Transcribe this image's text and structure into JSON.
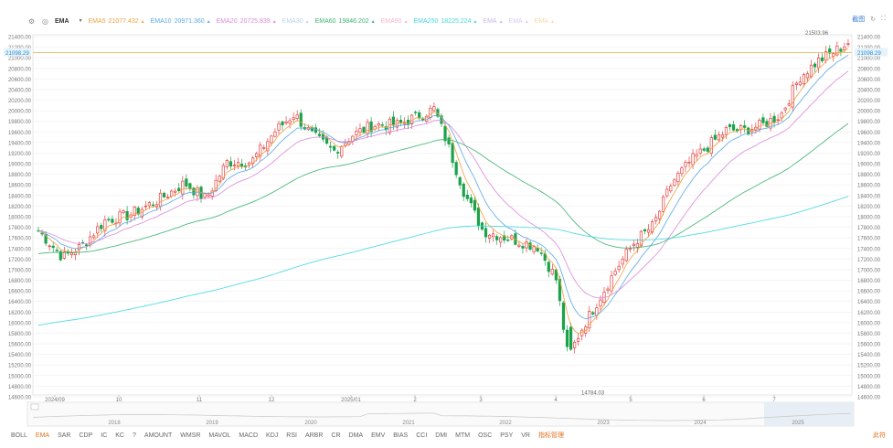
{
  "toolbar": {
    "indicator": "EMA",
    "items": [
      {
        "label": "EMA5",
        "value": "21077.432",
        "color": "#f0a040"
      },
      {
        "label": "EMA10",
        "value": "20971.360",
        "color": "#5aa9e6"
      },
      {
        "label": "EMA20",
        "value": "20725.839",
        "color": "#d98ad9"
      },
      {
        "label": "EMA30",
        "value": "",
        "color": "#b8d4f0"
      },
      {
        "label": "EMA60",
        "value": "19846.202",
        "color": "#3cb371"
      },
      {
        "label": "EMA90",
        "value": "",
        "color": "#f4b6c8"
      },
      {
        "label": "EMA250",
        "value": "18225.224",
        "color": "#40d8e0"
      },
      {
        "label": "EMA",
        "value": "",
        "color": "#c9b8e8"
      },
      {
        "label": "EMA",
        "value": "",
        "color": "#d9c8f0"
      },
      {
        "label": "EMA",
        "value": "",
        "color": "#f6d8a8"
      }
    ],
    "screenshot_label": "截图"
  },
  "chart_data": {
    "type": "candlestick",
    "y_ticks": [
      "21400.00",
      "21200.00",
      "21000.00",
      "20800.00",
      "20600.00",
      "20400.00",
      "20200.00",
      "20000.00",
      "19800.00",
      "19600.00",
      "19400.00",
      "19200.00",
      "19000.00",
      "18800.00",
      "18600.00",
      "18400.00",
      "18200.00",
      "18000.00",
      "17800.00",
      "17600.00",
      "17400.00",
      "17200.00",
      "17000.00",
      "16800.00",
      "16600.00",
      "16400.00",
      "16200.00",
      "16000.00",
      "15800.00",
      "15600.00",
      "15400.00",
      "15200.00",
      "15000.00",
      "14800.00",
      "14600.00"
    ],
    "ylim": [
      14600,
      21400
    ],
    "x_ticks": [
      "2024/09",
      "10",
      "11",
      "12",
      "2025/01",
      "2",
      "3",
      "4",
      "5",
      "6",
      "7"
    ],
    "current_price": "21098.29",
    "high_label": "21503.96",
    "low_label": "14784.03",
    "overview_years": [
      "2018",
      "2019",
      "2020",
      "2021",
      "2022",
      "2023",
      "2024",
      "2025"
    ],
    "candle_count": 220,
    "close_anchors": [
      [
        0,
        17700
      ],
      [
        8,
        17200
      ],
      [
        14,
        17400
      ],
      [
        22,
        17900
      ],
      [
        30,
        18000
      ],
      [
        40,
        18300
      ],
      [
        48,
        18600
      ],
      [
        55,
        18300
      ],
      [
        62,
        19000
      ],
      [
        70,
        19000
      ],
      [
        78,
        19600
      ],
      [
        84,
        19900
      ],
      [
        90,
        19500
      ],
      [
        97,
        19200
      ],
      [
        103,
        19500
      ],
      [
        110,
        19700
      ],
      [
        118,
        19700
      ],
      [
        126,
        19900
      ],
      [
        130,
        20000
      ],
      [
        134,
        19400
      ],
      [
        140,
        18400
      ],
      [
        146,
        17700
      ],
      [
        152,
        17600
      ],
      [
        158,
        17500
      ],
      [
        164,
        17400
      ],
      [
        170,
        16800
      ],
      [
        174,
        15300
      ],
      [
        178,
        15800
      ],
      [
        184,
        16400
      ],
      [
        190,
        17000
      ],
      [
        196,
        17500
      ],
      [
        202,
        17800
      ],
      [
        208,
        18600
      ],
      [
        214,
        19000
      ],
      [
        220,
        19300
      ],
      [
        226,
        19600
      ],
      [
        232,
        19600
      ],
      [
        238,
        19700
      ],
      [
        244,
        19900
      ],
      [
        250,
        20600
      ],
      [
        256,
        20900
      ],
      [
        262,
        21100
      ],
      [
        266,
        21250
      ]
    ],
    "series": [
      {
        "name": "EMA5",
        "period": 5,
        "color": "#f0a040"
      },
      {
        "name": "EMA10",
        "period": 10,
        "color": "#5aa9e6"
      },
      {
        "name": "EMA20",
        "period": 20,
        "color": "#d98ad9"
      },
      {
        "name": "EMA60",
        "period": 60,
        "color": "#3cb371"
      },
      {
        "name": "EMA250",
        "period": 250,
        "color": "#40d8e0"
      }
    ],
    "colors": {
      "up": "#e84040",
      "down": "#1aa34a",
      "grid": "#eeeeee",
      "price_line": "#e8b040"
    },
    "grid": true
  },
  "bottom": {
    "items": [
      "BOLL",
      "EMA",
      "SAR",
      "CDP",
      "IC",
      "KC",
      "?",
      "AMOUNT",
      "WMSR",
      "MAVOL",
      "MACD",
      "KDJ",
      "RSI",
      "ARBR",
      "CR",
      "DMA",
      "EMV",
      "BIAS",
      "CCI",
      "DMI",
      "MTM",
      "OSC",
      "PSY",
      "VR"
    ],
    "active": "EMA",
    "manage_label": "指标管理",
    "right_label": "此符"
  }
}
